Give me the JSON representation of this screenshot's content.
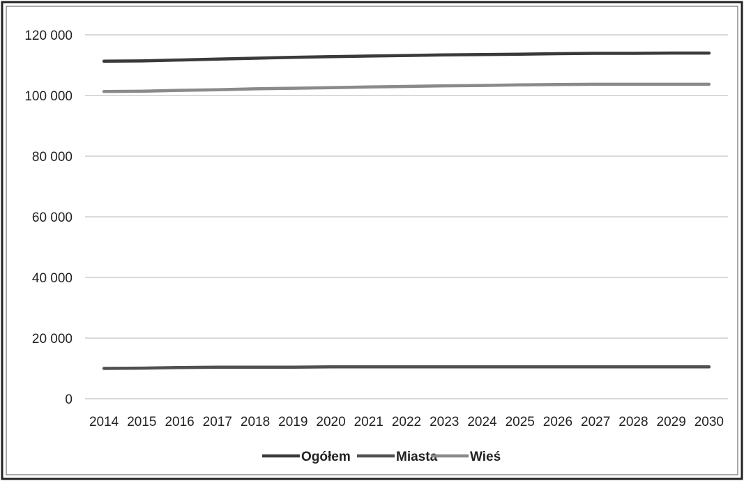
{
  "chart_data": {
    "type": "line",
    "x": [
      "2014",
      "2015",
      "2016",
      "2017",
      "2018",
      "2019",
      "2020",
      "2021",
      "2022",
      "2023",
      "2024",
      "2025",
      "2026",
      "2027",
      "2028",
      "2029",
      "2030"
    ],
    "ylim": [
      0,
      120000
    ],
    "yticks": [
      0,
      20000,
      40000,
      60000,
      80000,
      100000,
      120000
    ],
    "ytick_labels": [
      "0",
      "20 000",
      "40 000",
      "60 000",
      "80 000",
      "100 000",
      "120 000"
    ],
    "grid": true,
    "legend_position": "bottom",
    "series": [
      {
        "name": "Ogółem",
        "color": "#3a3a3a",
        "values": [
          111300,
          111400,
          111700,
          112000,
          112300,
          112600,
          112800,
          113000,
          113200,
          113400,
          113500,
          113600,
          113800,
          113900,
          113900,
          114000,
          114000
        ]
      },
      {
        "name": "Miasta",
        "color": "#505050",
        "values": [
          10000,
          10100,
          10300,
          10400,
          10400,
          10400,
          10500,
          10500,
          10500,
          10500,
          10500,
          10500,
          10500,
          10500,
          10500,
          10500,
          10500
        ]
      },
      {
        "name": "Wieś",
        "color": "#8a8a8a",
        "values": [
          101300,
          101400,
          101700,
          101900,
          102200,
          102400,
          102600,
          102800,
          103000,
          103200,
          103300,
          103500,
          103600,
          103700,
          103700,
          103700,
          103700
        ]
      }
    ]
  }
}
